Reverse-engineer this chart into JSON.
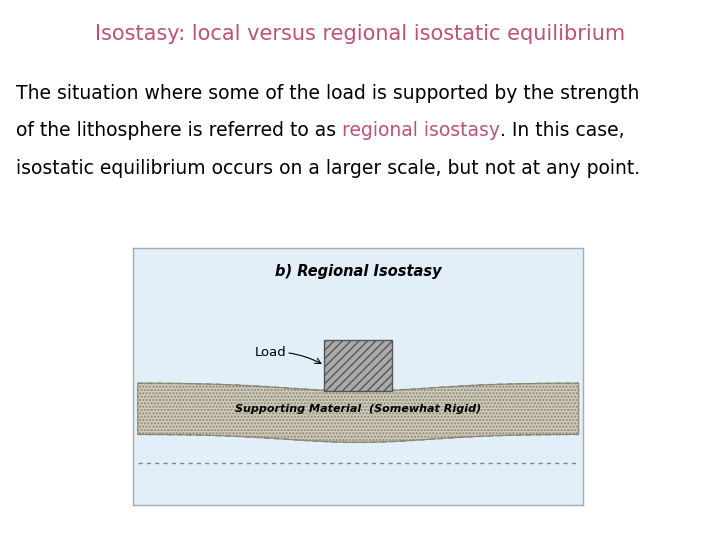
{
  "title": "Isostasy: local versus regional isostatic equilibrium",
  "title_color": "#c0507a",
  "title_fontsize": 15,
  "highlight_color": "#c0507a",
  "body_fontsize": 13.5,
  "bg_color": "#ffffff",
  "diagram_label": "b) Regional Isostasy",
  "load_label": "Load",
  "support_label": "Supporting Material  (Somewhat Rigid)",
  "diagram_bg": "#e2eef8",
  "diagram_border": "#aaaaaa",
  "litho_face": "#d0c8b8",
  "litho_edge": "#888877",
  "load_face": "#aaaaaa",
  "load_edge": "#555555",
  "dashed_color": "#888877"
}
